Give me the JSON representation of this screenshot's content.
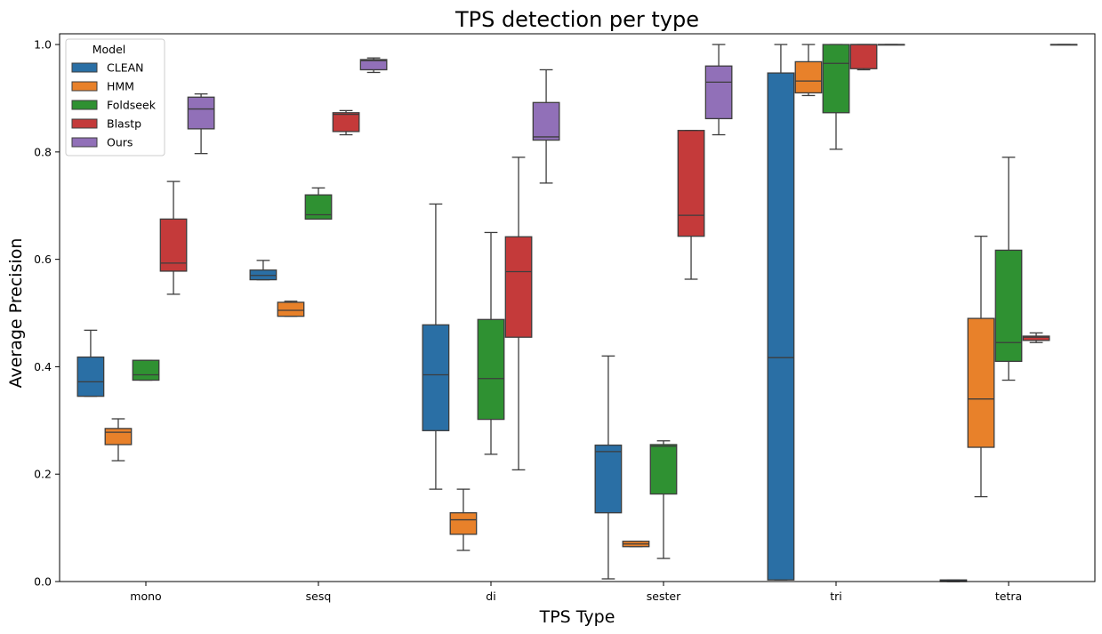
{
  "chart_data": {
    "type": "box",
    "title": "TPS detection per type",
    "xlabel": "TPS Type",
    "ylabel": "Average Precision",
    "ylim": [
      0.0,
      1.02
    ],
    "yticks": [
      "0.0",
      "0.2",
      "0.4",
      "0.6",
      "0.8",
      "1.0"
    ],
    "categories": [
      "mono",
      "sesq",
      "di",
      "sester",
      "tri",
      "tetra"
    ],
    "legend": {
      "title": "Model",
      "placement": "top-left"
    },
    "grid": false,
    "series": [
      {
        "name": "CLEAN",
        "color": "#2a6fa5",
        "boxes": [
          {
            "category": "mono",
            "min": 0.345,
            "q1": 0.345,
            "median": 0.372,
            "q3": 0.418,
            "max": 0.468
          },
          {
            "category": "sesq",
            "min": 0.562,
            "q1": 0.562,
            "median": 0.57,
            "q3": 0.58,
            "max": 0.598
          },
          {
            "category": "di",
            "min": 0.172,
            "q1": 0.281,
            "median": 0.385,
            "q3": 0.478,
            "max": 0.703
          },
          {
            "category": "sester",
            "min": 0.005,
            "q1": 0.128,
            "median": 0.242,
            "q3": 0.254,
            "max": 0.42
          },
          {
            "category": "tri",
            "min": 0.003,
            "q1": 0.003,
            "median": 0.417,
            "q3": 0.947,
            "max": 1.0
          },
          {
            "category": "tetra",
            "min": 0.0,
            "q1": 0.0,
            "median": 0.001,
            "q3": 0.003,
            "max": 0.003
          }
        ]
      },
      {
        "name": "HMM",
        "color": "#e8812a",
        "boxes": [
          {
            "category": "mono",
            "min": 0.225,
            "q1": 0.255,
            "median": 0.278,
            "q3": 0.285,
            "max": 0.303
          },
          {
            "category": "sesq",
            "min": 0.494,
            "q1": 0.494,
            "median": 0.505,
            "q3": 0.52,
            "max": 0.522
          },
          {
            "category": "di",
            "min": 0.058,
            "q1": 0.088,
            "median": 0.115,
            "q3": 0.128,
            "max": 0.172
          },
          {
            "category": "sester",
            "min": 0.065,
            "q1": 0.065,
            "median": 0.07,
            "q3": 0.075,
            "max": 0.075
          },
          {
            "category": "tri",
            "min": 0.905,
            "q1": 0.91,
            "median": 0.932,
            "q3": 0.968,
            "max": 1.0
          },
          {
            "category": "tetra",
            "min": 0.158,
            "q1": 0.25,
            "median": 0.34,
            "q3": 0.49,
            "max": 0.643
          }
        ]
      },
      {
        "name": "Foldseek",
        "color": "#2f9132",
        "boxes": [
          {
            "category": "mono",
            "min": 0.375,
            "q1": 0.375,
            "median": 0.385,
            "q3": 0.412,
            "max": 0.412
          },
          {
            "category": "sesq",
            "min": 0.675,
            "q1": 0.675,
            "median": 0.683,
            "q3": 0.72,
            "max": 0.733
          },
          {
            "category": "di",
            "min": 0.237,
            "q1": 0.302,
            "median": 0.378,
            "q3": 0.488,
            "max": 0.65
          },
          {
            "category": "sester",
            "min": 0.043,
            "q1": 0.163,
            "median": 0.252,
            "q3": 0.255,
            "max": 0.262
          },
          {
            "category": "tri",
            "min": 0.805,
            "q1": 0.873,
            "median": 0.965,
            "q3": 1.0,
            "max": 1.0
          },
          {
            "category": "tetra",
            "min": 0.375,
            "q1": 0.41,
            "median": 0.445,
            "q3": 0.617,
            "max": 0.79
          }
        ]
      },
      {
        "name": "Blastp",
        "color": "#c43a3a",
        "boxes": [
          {
            "category": "mono",
            "min": 0.535,
            "q1": 0.578,
            "median": 0.593,
            "q3": 0.675,
            "max": 0.745
          },
          {
            "category": "sesq",
            "min": 0.832,
            "q1": 0.838,
            "median": 0.87,
            "q3": 0.873,
            "max": 0.877
          },
          {
            "category": "di",
            "min": 0.208,
            "q1": 0.455,
            "median": 0.577,
            "q3": 0.642,
            "max": 0.79
          },
          {
            "category": "sester",
            "min": 0.563,
            "q1": 0.643,
            "median": 0.682,
            "q3": 0.84,
            "max": 0.84
          },
          {
            "category": "tri",
            "min": 0.953,
            "q1": 0.955,
            "median": 1.0,
            "q3": 1.0,
            "max": 1.0
          },
          {
            "category": "tetra",
            "min": 0.445,
            "q1": 0.449,
            "median": 0.455,
            "q3": 0.457,
            "max": 0.463
          }
        ]
      },
      {
        "name": "Ours",
        "color": "#9170b8",
        "boxes": [
          {
            "category": "mono",
            "min": 0.797,
            "q1": 0.843,
            "median": 0.88,
            "q3": 0.902,
            "max": 0.908
          },
          {
            "category": "sesq",
            "min": 0.948,
            "q1": 0.953,
            "median": 0.97,
            "q3": 0.972,
            "max": 0.975
          },
          {
            "category": "di",
            "min": 0.742,
            "q1": 0.822,
            "median": 0.828,
            "q3": 0.892,
            "max": 0.953
          },
          {
            "category": "sester",
            "min": 0.832,
            "q1": 0.862,
            "median": 0.93,
            "q3": 0.96,
            "max": 1.0
          },
          {
            "category": "tri",
            "min": 1.0,
            "q1": 1.0,
            "median": 1.0,
            "q3": 1.0,
            "max": 1.0
          },
          {
            "category": "tetra",
            "min": 1.0,
            "q1": 1.0,
            "median": 1.0,
            "q3": 1.0,
            "max": 1.0
          }
        ]
      }
    ]
  }
}
